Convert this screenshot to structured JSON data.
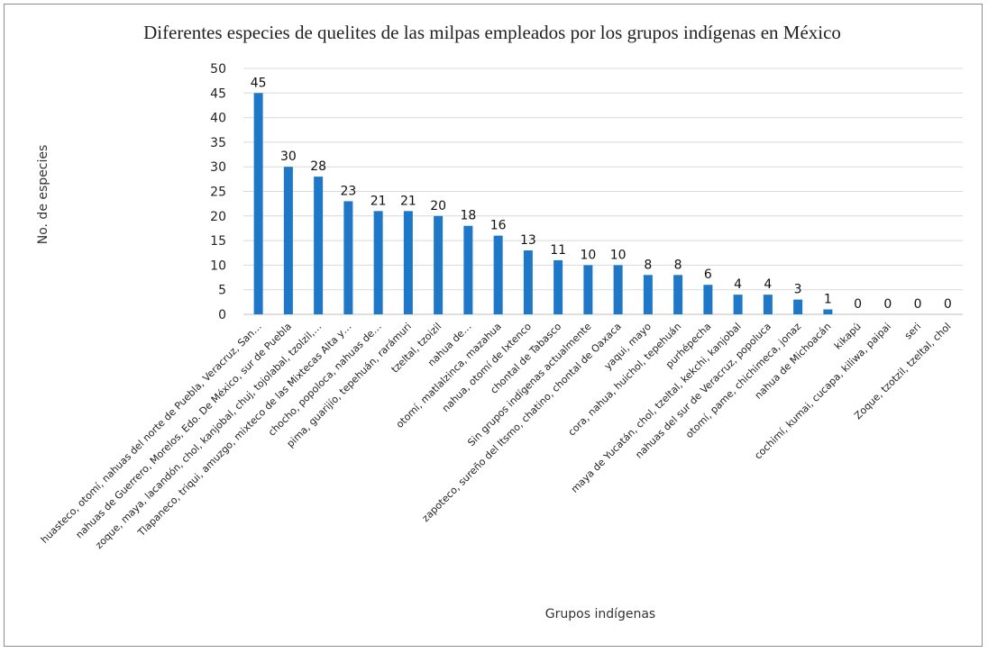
{
  "chart_data": {
    "type": "bar",
    "title": "Diferentes especies de quelites de las milpas empleados por los grupos indígenas en México",
    "xlabel": "Grupos indígenas",
    "ylabel": "No. de especies",
    "ylim": [
      0,
      50
    ],
    "yticks": [
      0,
      5,
      10,
      15,
      20,
      25,
      30,
      35,
      40,
      45,
      50
    ],
    "grid": true,
    "bar_color": "#1f77c8",
    "categories": [
      "huasteco, otomí, nahuas del norte de Puebla, Veracruz, San…",
      "nahuas de Guerrero, Morelos, Edo. De México, sur de Puebla",
      "zoque, maya, lacandón, chol, kanjobal, chuj, tojolabal, tzolzil,…",
      "Tlapaneco, triqui, amuzgo, mixteco de las Mixtecas Alta y…",
      "chocho, popoloca, nahuas de…",
      "pima, guarijío, tepehuán, rarámuri",
      "tzeltal, tzoizil",
      "nahua de…",
      "otomí, matlalzinca, mazahua",
      "nahua, otomí de Ixtenco",
      "chontal de Tabasco",
      "Sin grupos indígenas actualmente",
      "zapoteco, sureño del Itsmo, chatino, chontal de Oaxaca",
      "yaqui, mayo",
      "cora, nahua, huichol, tepehuán",
      "purhépecha",
      "maya de Yucatán, chol, tzeltal, kekchi, kanjobal",
      "nahuas del sur de Veracruz, popoluca",
      "otomí, pame, chichimeca, jonaz",
      "nahua de Michoacán",
      "kikapú",
      "cochimí, kumai, cucapa, kiliwa, paipai",
      "seri",
      "Zoque, tzotzil, tzeltal, chol"
    ],
    "values": [
      45,
      30,
      28,
      23,
      21,
      21,
      20,
      18,
      16,
      13,
      11,
      10,
      10,
      8,
      8,
      6,
      4,
      4,
      3,
      1,
      0,
      0,
      0,
      0
    ]
  }
}
